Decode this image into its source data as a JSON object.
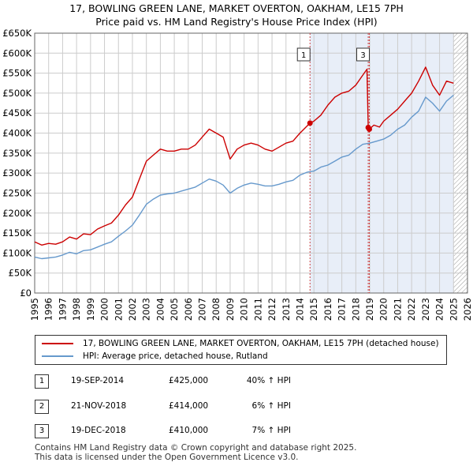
{
  "title_line1": "17, BOWLING GREEN LANE, MARKET OVERTON, OAKHAM, LE15 7PH",
  "title_line2": "Price paid vs. HM Land Registry's House Price Index (HPI)",
  "colors": {
    "property_line": "#cc0000",
    "hpi_line": "#6699cc",
    "shaded_region": "#e8eef8",
    "grid": "#cccccc",
    "marker_line": "#cc4444"
  },
  "chart_data": {
    "type": "line",
    "xlim": [
      1995,
      2026
    ],
    "ylim": [
      0,
      650000
    ],
    "x_ticks": [
      "1995",
      "1996",
      "1997",
      "1998",
      "1999",
      "2000",
      "2001",
      "2002",
      "2003",
      "2004",
      "2005",
      "2006",
      "2007",
      "2008",
      "2009",
      "2010",
      "2011",
      "2012",
      "2013",
      "2014",
      "2015",
      "2016",
      "2017",
      "2018",
      "2019",
      "2020",
      "2021",
      "2022",
      "2023",
      "2024",
      "2025",
      "2026"
    ],
    "y_ticks": [
      {
        "value": 0,
        "label": "£0"
      },
      {
        "value": 50000,
        "label": "£50K"
      },
      {
        "value": 100000,
        "label": "£100K"
      },
      {
        "value": 150000,
        "label": "£150K"
      },
      {
        "value": 200000,
        "label": "£200K"
      },
      {
        "value": 250000,
        "label": "£250K"
      },
      {
        "value": 300000,
        "label": "£300K"
      },
      {
        "value": 350000,
        "label": "£350K"
      },
      {
        "value": 400000,
        "label": "£400K"
      },
      {
        "value": 450000,
        "label": "£450K"
      },
      {
        "value": 500000,
        "label": "£500K"
      },
      {
        "value": 550000,
        "label": "£550K"
      },
      {
        "value": 600000,
        "label": "£600K"
      },
      {
        "value": 650000,
        "label": "£650K"
      }
    ],
    "shaded_range": [
      2014.72,
      2025.0
    ],
    "future_hatch_from": 2025.0,
    "series": [
      {
        "name": "17, BOWLING GREEN LANE, MARKET OVERTON, OAKHAM, LE15 7PH (detached house)",
        "color": "#cc0000",
        "x": [
          1995.0,
          1995.5,
          1996.0,
          1996.5,
          1997.0,
          1997.5,
          1998.0,
          1998.5,
          1999.0,
          1999.5,
          2000.0,
          2000.5,
          2001.0,
          2001.5,
          2002.0,
          2002.5,
          2003.0,
          2003.5,
          2004.0,
          2004.5,
          2005.0,
          2005.5,
          2006.0,
          2006.5,
          2007.0,
          2007.5,
          2008.0,
          2008.5,
          2009.0,
          2009.5,
          2010.0,
          2010.5,
          2011.0,
          2011.5,
          2012.0,
          2012.5,
          2013.0,
          2013.5,
          2014.0,
          2014.72,
          2015.0,
          2015.5,
          2016.0,
          2016.5,
          2017.0,
          2017.5,
          2018.0,
          2018.5,
          2018.8,
          2018.89,
          2018.97,
          2019.3,
          2019.7,
          2020.0,
          2020.5,
          2021.0,
          2021.5,
          2022.0,
          2022.5,
          2023.0,
          2023.5,
          2024.0,
          2024.5,
          2025.0
        ],
        "y": [
          128000,
          120000,
          124000,
          122000,
          128000,
          140000,
          135000,
          148000,
          146000,
          160000,
          168000,
          175000,
          195000,
          220000,
          240000,
          285000,
          330000,
          345000,
          360000,
          355000,
          355000,
          360000,
          360000,
          370000,
          390000,
          410000,
          400000,
          390000,
          335000,
          360000,
          370000,
          375000,
          370000,
          360000,
          355000,
          365000,
          375000,
          380000,
          400000,
          425000,
          430000,
          445000,
          470000,
          490000,
          500000,
          505000,
          520000,
          545000,
          560000,
          414000,
          410000,
          420000,
          415000,
          430000,
          445000,
          460000,
          480000,
          500000,
          530000,
          565000,
          520000,
          495000,
          530000,
          525000
        ]
      },
      {
        "name": "HPI: Average price, detached house, Rutland",
        "color": "#6699cc",
        "x": [
          1995.0,
          1995.5,
          1996.0,
          1996.5,
          1997.0,
          1997.5,
          1998.0,
          1998.5,
          1999.0,
          1999.5,
          2000.0,
          2000.5,
          2001.0,
          2001.5,
          2002.0,
          2002.5,
          2003.0,
          2003.5,
          2004.0,
          2004.5,
          2005.0,
          2005.5,
          2006.0,
          2006.5,
          2007.0,
          2007.5,
          2008.0,
          2008.5,
          2009.0,
          2009.5,
          2010.0,
          2010.5,
          2011.0,
          2011.5,
          2012.0,
          2012.5,
          2013.0,
          2013.5,
          2014.0,
          2014.5,
          2015.0,
          2015.5,
          2016.0,
          2016.5,
          2017.0,
          2017.5,
          2018.0,
          2018.5,
          2019.0,
          2019.5,
          2020.0,
          2020.5,
          2021.0,
          2021.5,
          2022.0,
          2022.5,
          2023.0,
          2023.5,
          2024.0,
          2024.5,
          2025.0
        ],
        "y": [
          90000,
          86000,
          88000,
          90000,
          95000,
          102000,
          98000,
          106000,
          108000,
          115000,
          122000,
          128000,
          142000,
          155000,
          170000,
          195000,
          222000,
          235000,
          245000,
          248000,
          250000,
          255000,
          260000,
          265000,
          275000,
          285000,
          280000,
          270000,
          250000,
          262000,
          270000,
          275000,
          272000,
          268000,
          268000,
          272000,
          278000,
          282000,
          295000,
          302000,
          305000,
          315000,
          320000,
          330000,
          340000,
          345000,
          360000,
          372000,
          375000,
          380000,
          385000,
          395000,
          410000,
          420000,
          440000,
          455000,
          490000,
          475000,
          455000,
          480000,
          495000
        ]
      }
    ],
    "sale_markers": [
      {
        "label": "1",
        "x": 2014.72,
        "y": 425000
      },
      {
        "label": "2",
        "x": 2018.89,
        "y": 414000
      },
      {
        "label": "3",
        "x": 2018.97,
        "y": 410000
      }
    ]
  },
  "legend": {
    "property": "17, BOWLING GREEN LANE, MARKET OVERTON, OAKHAM, LE15 7PH (detached house)",
    "hpi": "HPI: Average price, detached house, Rutland"
  },
  "sales": [
    {
      "num": "1",
      "date": "19-SEP-2014",
      "price": "£425,000",
      "hpi": "40% ↑ HPI"
    },
    {
      "num": "2",
      "date": "21-NOV-2018",
      "price": "£414,000",
      "hpi": "6% ↑ HPI"
    },
    {
      "num": "3",
      "date": "19-DEC-2018",
      "price": "£410,000",
      "hpi": "7% ↑ HPI"
    }
  ],
  "footer": {
    "line1": "Contains HM Land Registry data © Crown copyright and database right 2025.",
    "line2": "This data is licensed under the Open Government Licence v3.0."
  }
}
